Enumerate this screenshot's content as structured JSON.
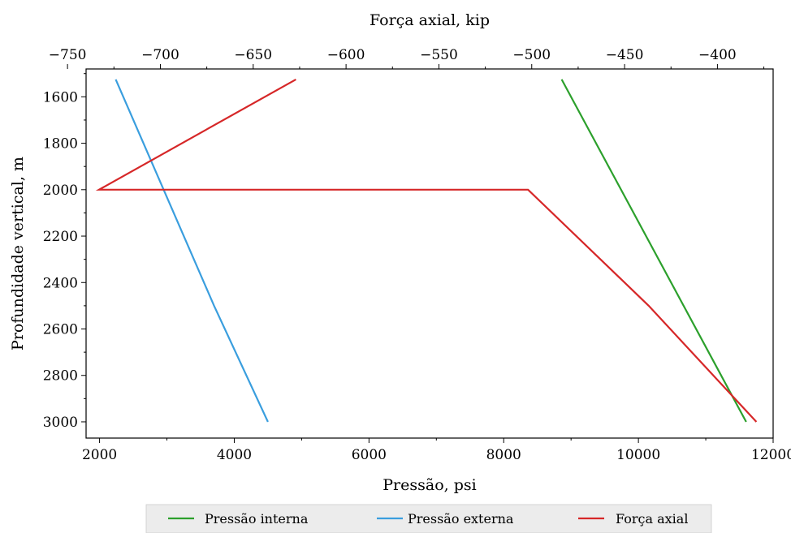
{
  "chart_data": {
    "type": "line",
    "xlabel": "Pressão, psi",
    "top_xlabel": "Força axial, kip",
    "ylabel": "Profundidade vertical, m",
    "xlim": [
      1800,
      12000
    ],
    "top_xlim": [
      -740,
      -370
    ],
    "ylim": [
      3070,
      1480
    ],
    "y_inverted": true,
    "x_ticks": [
      2000,
      4000,
      6000,
      8000,
      10000,
      12000
    ],
    "x_tick_labels": [
      "2000",
      "4000",
      "6000",
      "8000",
      "10000",
      "12000"
    ],
    "top_ticks": [
      -750,
      -700,
      -650,
      -600,
      -550,
      -500,
      -450,
      -400
    ],
    "top_tick_labels": [
      "−750",
      "−700",
      "−650",
      "−600",
      "−550",
      "−500",
      "−450",
      "−400"
    ],
    "y_ticks": [
      1600,
      1800,
      2000,
      2200,
      2400,
      2600,
      2800,
      3000
    ],
    "y_tick_labels": [
      "1600",
      "1800",
      "2000",
      "2200",
      "2400",
      "2600",
      "2800",
      "3000"
    ],
    "grid": false,
    "legend_position": "bottom",
    "series": [
      {
        "name": "Pressão interna",
        "axis": "bottom",
        "color": "#2ca02c",
        "x": [
          8860,
          11600
        ],
        "y": [
          1525,
          3000
        ]
      },
      {
        "name": "Pressão externa",
        "axis": "bottom",
        "color": "#3a9ede",
        "x": [
          2240,
          3700,
          4500
        ],
        "y": [
          1525,
          2500,
          3000
        ]
      },
      {
        "name": "Força axial",
        "axis": "top",
        "color": "#d62728",
        "x": [
          -627,
          -733,
          -502,
          -437,
          -379
        ],
        "y": [
          1525,
          2000,
          2000,
          2500,
          3000
        ]
      }
    ]
  }
}
